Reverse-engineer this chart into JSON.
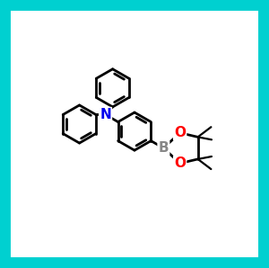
{
  "border_color": "#00D0D0",
  "background_color": "#FFFFFF",
  "atom_colors": {
    "N": "#0000EE",
    "B": "#888888",
    "O": "#FF0000",
    "C": "#000000"
  },
  "bond_color": "#000000",
  "bond_width": 2.0,
  "figsize": [
    3.0,
    2.98
  ],
  "dpi": 100
}
